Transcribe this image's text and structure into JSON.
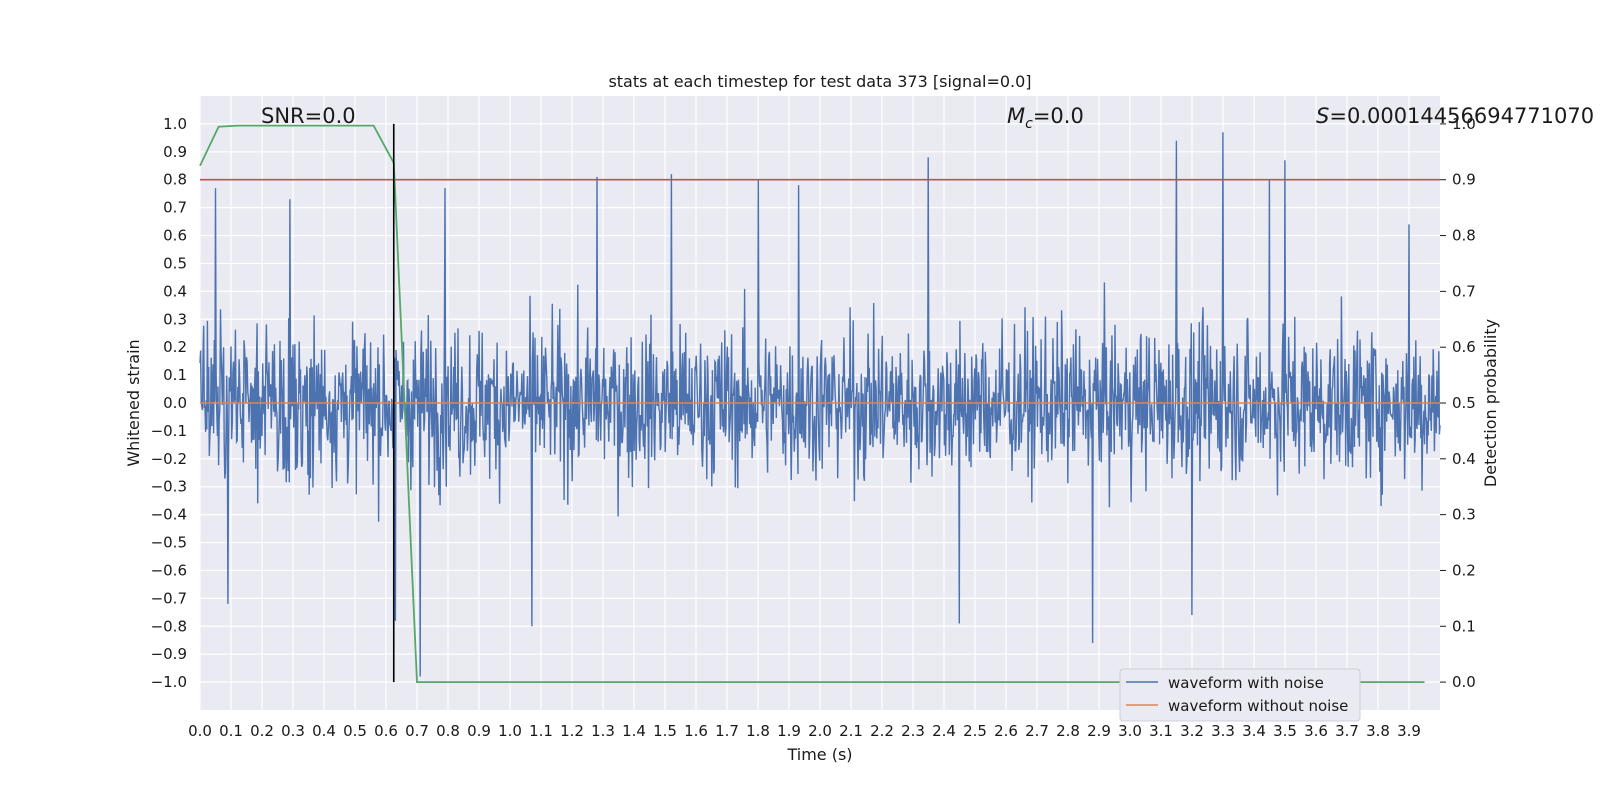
{
  "chart_data": {
    "type": "line",
    "title": "stats at each timestep for test data 373 [signal=0.0]",
    "xlabel": "Time (s)",
    "ylabel": "Whitened strain",
    "ylabel_right": "Detection probability",
    "xlim": [
      0.0,
      4.0
    ],
    "ylim": [
      -1.1,
      1.1
    ],
    "ylim_right": [
      -0.05,
      1.05
    ],
    "xticks": [
      "0.0",
      "0.1",
      "0.2",
      "0.3",
      "0.4",
      "0.5",
      "0.6",
      "0.7",
      "0.8",
      "0.9",
      "1.0",
      "1.1",
      "1.2",
      "1.3",
      "1.4",
      "1.5",
      "1.6",
      "1.7",
      "1.8",
      "1.9",
      "2.0",
      "2.1",
      "2.2",
      "2.3",
      "2.4",
      "2.5",
      "2.6",
      "2.7",
      "2.8",
      "2.9",
      "3.0",
      "3.1",
      "3.2",
      "3.3",
      "3.4",
      "3.5",
      "3.6",
      "3.7",
      "3.8",
      "3.9"
    ],
    "yticks": [
      "1.0",
      "0.9",
      "0.8",
      "0.7",
      "0.6",
      "0.5",
      "0.4",
      "0.3",
      "0.2",
      "0.1",
      "0.0",
      "−0.1",
      "−0.2",
      "−0.3",
      "−0.4",
      "−0.5",
      "−0.6",
      "−0.7",
      "−0.8",
      "−0.9",
      "−1.0"
    ],
    "yticks_right": [
      "1.0",
      "0.9",
      "0.8",
      "0.7",
      "0.6",
      "0.5",
      "0.4",
      "0.3",
      "0.2",
      "0.1",
      "0.0"
    ],
    "grid": true,
    "legend_position": "lower-right",
    "annotations": {
      "snr": "SNR=0.0",
      "mc_symbol": "M",
      "mc_sub": "c",
      "mc_value": "=0.0",
      "s_symbol": "S",
      "s_value": "=0.00014456694771070"
    },
    "series": [
      {
        "name": "waveform with noise",
        "color": "#4c72b0",
        "kind": "noise",
        "amplitude_range": [
          -0.98,
          0.97
        ],
        "n_points": 2000
      },
      {
        "name": "waveform without noise",
        "color": "#dd8452",
        "kind": "constant",
        "value": 0.0
      },
      {
        "color": "#55a868",
        "axis": "right",
        "x": [
          0.0,
          0.06,
          0.12,
          0.5,
          0.56,
          0.625,
          0.7,
          3.95
        ],
        "y": [
          0.925,
          0.995,
          0.997,
          0.997,
          0.997,
          0.93,
          0.0,
          0.0
        ]
      },
      {
        "color": "#c44e52",
        "axis": "right",
        "kind": "threshold",
        "value": 0.9
      }
    ],
    "vline": {
      "x": 0.625,
      "color": "#000000"
    },
    "noise_spikes": [
      {
        "x": 0.05,
        "y": 0.77
      },
      {
        "x": 0.09,
        "y": -0.72
      },
      {
        "x": 0.29,
        "y": 0.73
      },
      {
        "x": 0.63,
        "y": -0.78
      },
      {
        "x": 0.71,
        "y": -0.98
      },
      {
        "x": 0.79,
        "y": 0.77
      },
      {
        "x": 1.07,
        "y": -0.8
      },
      {
        "x": 1.28,
        "y": 0.81
      },
      {
        "x": 1.52,
        "y": 0.82
      },
      {
        "x": 1.8,
        "y": 0.8
      },
      {
        "x": 1.93,
        "y": 0.78
      },
      {
        "x": 2.35,
        "y": 0.88
      },
      {
        "x": 2.45,
        "y": -0.79
      },
      {
        "x": 2.88,
        "y": -0.86
      },
      {
        "x": 3.15,
        "y": 0.94
      },
      {
        "x": 3.2,
        "y": -0.76
      },
      {
        "x": 3.3,
        "y": 0.97
      },
      {
        "x": 3.45,
        "y": 0.8
      },
      {
        "x": 3.5,
        "y": 0.87
      },
      {
        "x": 3.9,
        "y": 0.64
      }
    ]
  }
}
